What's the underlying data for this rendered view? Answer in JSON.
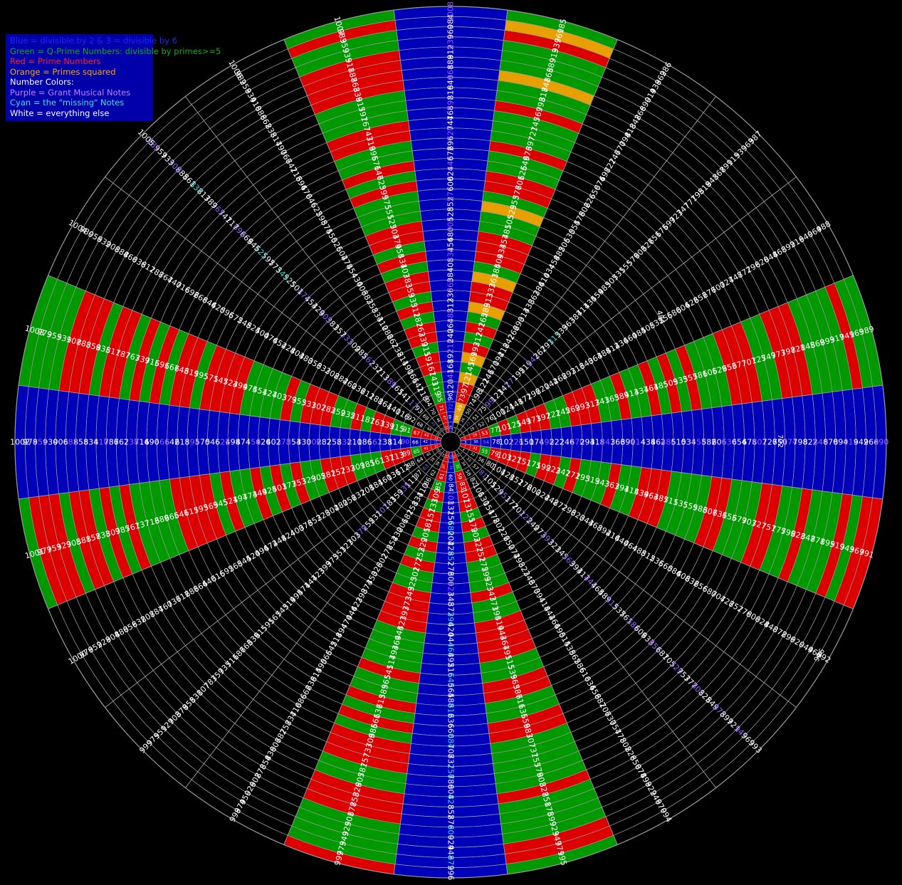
{
  "legend": {
    "lines": [
      {
        "text": "Blue = divisible by 2 & 3 = divisible by 6",
        "color": "#2222ff"
      },
      {
        "text": "Green = Q-Prime Numbers: divisible by primes>=5",
        "color": "#11aa11"
      },
      {
        "text": "Red = Prime Numbers",
        "color": "#ff2020"
      },
      {
        "text": "Orange = Primes squared",
        "color": "#ffa500"
      },
      {
        "text": "Number Colors:",
        "color": "#ffffff"
      },
      {
        "text": "Purple = Grant Musical Notes",
        "color": "#c080ff"
      },
      {
        "text": "Cyan = the \"missing\" Notes",
        "color": "#40e0e0"
      },
      {
        "text": "White = everything else",
        "color": "#ffffff"
      }
    ]
  },
  "wheel": {
    "spokes": 24,
    "rings": 42,
    "max_number": 1008,
    "colors": {
      "blue": "#0000bb",
      "green": "#009900",
      "red": "#dd0000",
      "orange": "#e8a000",
      "black": "#000000",
      "grid": "#9a9a9a",
      "note_purple": "#9966ff",
      "note_cyan": "#44dddd",
      "text_white": "#ffffff"
    }
  },
  "annotations": [
    {
      "text": "484"
    },
    {
      "text": "702"
    },
    {
      "text": "966"
    }
  ]
}
